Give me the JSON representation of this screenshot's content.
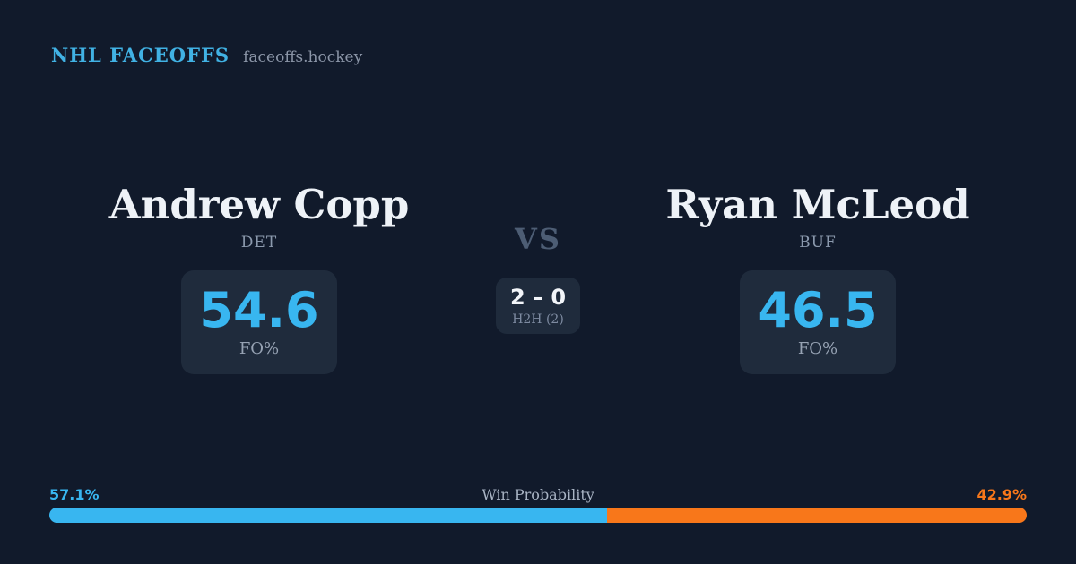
{
  "header": {
    "brand": "NHL FACEOFFS",
    "site": "faceoffs.hockey"
  },
  "players": {
    "left": {
      "name": "Andrew Copp",
      "team": "DET",
      "stat_value": "54.6",
      "stat_label": "FO%"
    },
    "right": {
      "name": "Ryan McLeod",
      "team": "BUF",
      "stat_value": "46.5",
      "stat_label": "FO%"
    }
  },
  "center": {
    "vs_label": "VS",
    "h2h_score": "2 – 0",
    "h2h_label": "H2H (2)"
  },
  "win_probability": {
    "title": "Win Probability",
    "left_pct_label": "57.1%",
    "right_pct_label": "42.9%",
    "left_pct": 57.1,
    "right_pct": 42.9
  },
  "colors": {
    "background": "#111a2b",
    "card": "#1f2b3c",
    "accent_blue": "#38b6f0",
    "accent_orange": "#f8771a",
    "brand_blue": "#41b2e4",
    "name_text": "#eef2f7",
    "muted_text": "#8b99ad"
  }
}
